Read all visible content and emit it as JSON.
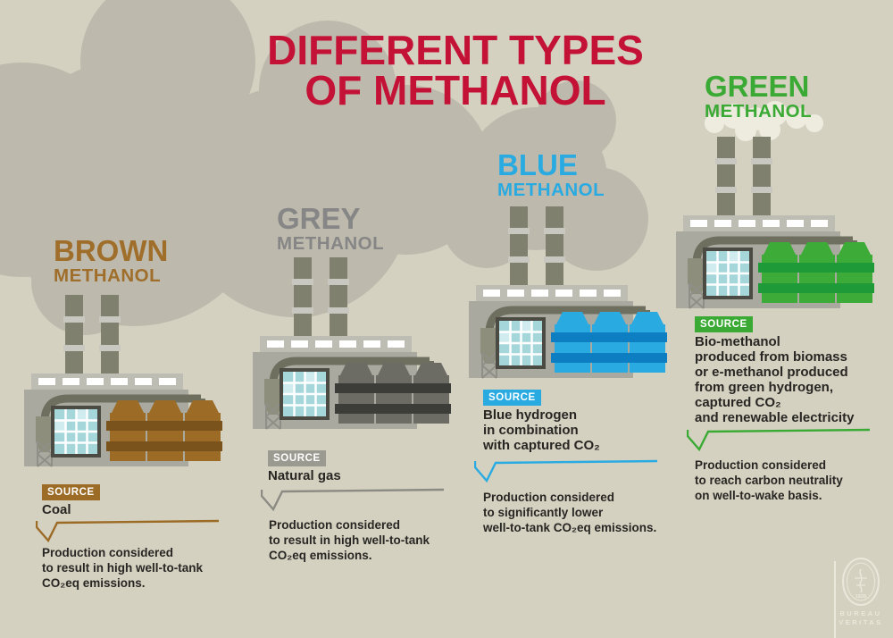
{
  "title": {
    "line1": "DIFFERENT TYPES",
    "line2": "OF METHANOL"
  },
  "palette": {
    "background": "#d4d1c1",
    "cloud": "#bdbaad",
    "smoke_white": "#edecdf",
    "title": "#c41237",
    "text": "#282623",
    "factory_body": "#a9a9a0",
    "factory_roof": "#bdbdb4",
    "roof_window": "#ffffff",
    "chimney": "#80806f",
    "chimney_band": "#c8c8c0",
    "window_frame": "#4b4b44",
    "window_pane": "#a5d7da",
    "window_pane_light": "#d0ecee",
    "pipe": "#6f6f5f",
    "tank": "#8e8e7c",
    "mast": "#8f8f87",
    "logo": "#eae8da"
  },
  "columns": [
    {
      "id": "brown",
      "heading": "BROWN",
      "subheading": "METHANOL",
      "source_label": "SOURCE",
      "source_lines": [
        "Coal"
      ],
      "note_lines": [
        "Production considered",
        "to result in high well-to-tank",
        "CO₂eq emissions."
      ],
      "colors": {
        "heading": "#a06e2b",
        "badge": "#9c6b26",
        "line": "#9c6b26",
        "silo": "#9c6b26",
        "silo_band": "#7a521c"
      }
    },
    {
      "id": "grey",
      "heading": "GREY",
      "subheading": "METHANOL",
      "source_label": "SOURCE",
      "source_lines": [
        "Natural gas"
      ],
      "note_lines": [
        "Production considered",
        "to result in high well-to-tank",
        "CO₂eq emissions."
      ],
      "colors": {
        "heading": "#868686",
        "badge": "#9a9a90",
        "line": "#8b8b83",
        "silo": "#6c6c64",
        "silo_band": "#3c3c38"
      }
    },
    {
      "id": "blue",
      "heading": "BLUE",
      "subheading": "METHANOL",
      "source_label": "SOURCE",
      "source_lines": [
        "Blue hydrogen",
        "in combination",
        "with captured CO₂"
      ],
      "note_lines": [
        "Production considered",
        "to significantly lower",
        "well-to-tank CO₂eq emissions."
      ],
      "colors": {
        "heading": "#29abe2",
        "badge": "#29abe2",
        "line": "#29abe2",
        "silo": "#29abe2",
        "silo_band": "#0d7ec2"
      }
    },
    {
      "id": "green",
      "heading": "GREEN",
      "subheading": "METHANOL",
      "source_label": "SOURCE",
      "source_lines": [
        "Bio-methanol",
        "produced from biomass",
        "or e-methanol produced",
        "from green hydrogen,",
        "captured CO₂",
        "and renewable electricity"
      ],
      "note_lines": [
        "Production considered",
        "to reach carbon neutrality",
        "on well-to-wake basis."
      ],
      "colors": {
        "heading": "#3aaa35",
        "badge": "#3aaa35",
        "line": "#3aaa35",
        "silo": "#3cab37",
        "silo_band": "#1e9a39"
      }
    }
  ],
  "logo": {
    "name_top": "BUREAU",
    "name_bottom": "VERITAS",
    "year": "1828"
  }
}
